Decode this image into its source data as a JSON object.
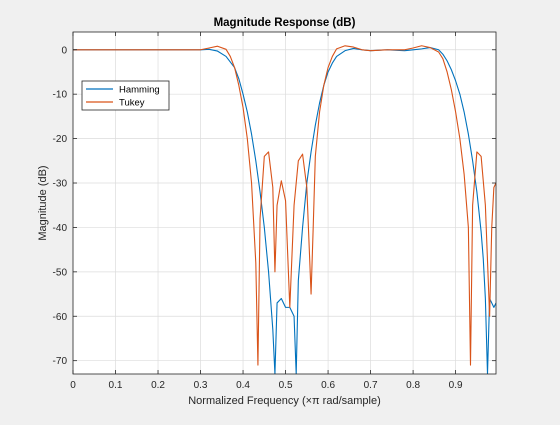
{
  "window": {
    "background": "#f0f0f0"
  },
  "chart_data": {
    "type": "line",
    "title": "Magnitude Response (dB)",
    "xlabel": "Normalized Frequency (×π rad/sample)",
    "ylabel": "Magnitude (dB)",
    "xlim": [
      0,
      0.995
    ],
    "ylim": [
      -73,
      4
    ],
    "xticks": [
      0,
      0.1,
      0.2,
      0.3,
      0.4,
      0.5,
      0.6,
      0.7,
      0.8,
      0.9
    ],
    "xtick_labels": [
      "0",
      "0.1",
      "0.2",
      "0.3",
      "0.4",
      "0.5",
      "0.6",
      "0.7",
      "0.8",
      "0.9"
    ],
    "yticks": [
      0,
      -10,
      -20,
      -30,
      -40,
      -50,
      -60,
      -70
    ],
    "ytick_labels": [
      "0",
      "-10",
      "-20",
      "-30",
      "-40",
      "-50",
      "-60",
      "-70"
    ],
    "grid": true,
    "legend": {
      "placement": "upper-left",
      "entries": [
        "Hamming",
        "Tukey"
      ]
    },
    "series": [
      {
        "name": "Hamming",
        "color": "#0072bd",
        "x": [
          0,
          0.26,
          0.28,
          0.3,
          0.32,
          0.34,
          0.36,
          0.38,
          0.39,
          0.4,
          0.41,
          0.42,
          0.43,
          0.44,
          0.45,
          0.46,
          0.47,
          0.475,
          0.48,
          0.49,
          0.5,
          0.51,
          0.52,
          0.525,
          0.53,
          0.54,
          0.55,
          0.56,
          0.57,
          0.58,
          0.59,
          0.6,
          0.61,
          0.62,
          0.64,
          0.66,
          0.68,
          0.7,
          0.74,
          0.78,
          0.8,
          0.82,
          0.84,
          0.86,
          0.87,
          0.88,
          0.89,
          0.9,
          0.91,
          0.92,
          0.93,
          0.94,
          0.95,
          0.96,
          0.965,
          0.97,
          0.975,
          0.98,
          0.99,
          0.995
        ],
        "y": [
          0,
          0,
          0,
          0,
          0.1,
          -0.3,
          -1.5,
          -4,
          -6.5,
          -10,
          -14,
          -19,
          -25,
          -32,
          -40,
          -50,
          -63,
          -73,
          -57,
          -56,
          -58,
          -58,
          -60,
          -73,
          -52,
          -40,
          -30,
          -23,
          -17,
          -12,
          -8,
          -5,
          -3,
          -1.5,
          -0.2,
          0.3,
          0,
          -0.2,
          0,
          -0.2,
          0,
          0.2,
          0.5,
          0,
          -1,
          -2.5,
          -4.5,
          -7,
          -10,
          -14,
          -19,
          -25,
          -32,
          -41,
          -47,
          -56,
          -73,
          -56,
          -58,
          -57
        ]
      },
      {
        "name": "Tukey",
        "color": "#d95319",
        "x": [
          0,
          0.26,
          0.3,
          0.32,
          0.34,
          0.36,
          0.37,
          0.38,
          0.39,
          0.4,
          0.41,
          0.42,
          0.43,
          0.435,
          0.44,
          0.45,
          0.46,
          0.47,
          0.475,
          0.48,
          0.49,
          0.5,
          0.51,
          0.52,
          0.53,
          0.54,
          0.55,
          0.56,
          0.565,
          0.57,
          0.58,
          0.59,
          0.6,
          0.61,
          0.62,
          0.64,
          0.66,
          0.68,
          0.7,
          0.74,
          0.78,
          0.8,
          0.82,
          0.84,
          0.86,
          0.87,
          0.88,
          0.89,
          0.9,
          0.91,
          0.92,
          0.93,
          0.935,
          0.94,
          0.95,
          0.96,
          0.97,
          0.98,
          0.985,
          0.99,
          0.995
        ],
        "y": [
          0,
          0,
          0,
          0.4,
          0.8,
          0.1,
          -1.5,
          -4,
          -8,
          -13,
          -20,
          -30,
          -48,
          -71,
          -38,
          -24,
          -23,
          -31,
          -50,
          -35,
          -29.5,
          -34,
          -58,
          -35,
          -25,
          -23.5,
          -31,
          -55,
          -40,
          -24,
          -14,
          -8,
          -4,
          -1.5,
          0.2,
          0.9,
          0.6,
          0,
          -0.2,
          0,
          0,
          0.4,
          0.9,
          0.5,
          -0.5,
          -2,
          -5,
          -9,
          -14,
          -20,
          -28,
          -40,
          -71,
          -35,
          -23,
          -24,
          -35,
          -60,
          -40,
          -31,
          -30
        ]
      }
    ]
  }
}
